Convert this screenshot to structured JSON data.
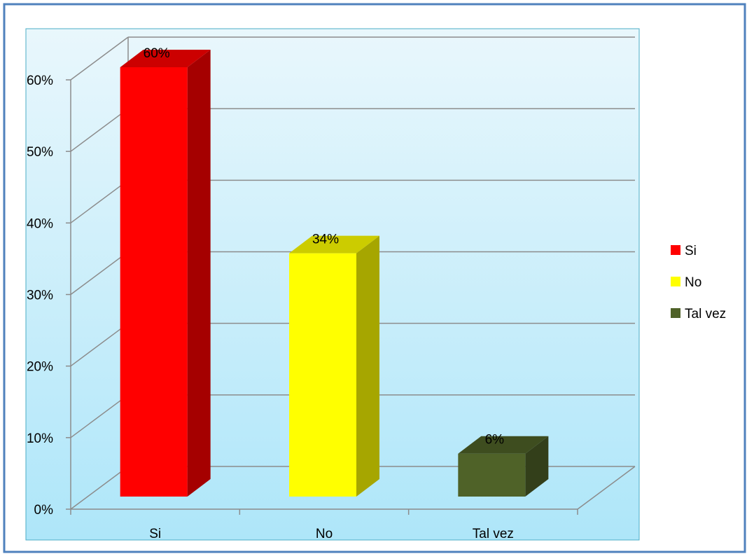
{
  "chart_data": {
    "type": "bar",
    "categories": [
      "Si",
      "No",
      "Tal vez"
    ],
    "values": [
      60,
      34,
      6
    ],
    "value_labels": [
      "60%",
      "34%",
      "6%"
    ],
    "ylim": [
      0,
      60
    ],
    "yticks": [
      0,
      10,
      20,
      30,
      40,
      50,
      60
    ],
    "ytick_labels": [
      "0%",
      "10%",
      "20%",
      "30%",
      "40%",
      "50%",
      "60%"
    ],
    "title": "",
    "xlabel": "",
    "ylabel": "",
    "grid": true,
    "legend_position": "right",
    "legend": [
      {
        "label": "Si",
        "color": "#ff0000"
      },
      {
        "label": "No",
        "color": "#ffff00"
      },
      {
        "label": "Tal vez",
        "color": "#4f6228"
      }
    ],
    "colors": {
      "bar_front": [
        "#ff0000",
        "#ffff00",
        "#4f6228"
      ],
      "bar_side": [
        "#a50000",
        "#a6a600",
        "#333f1a"
      ],
      "bar_top": [
        "#cc0000",
        "#cccc00",
        "#3e4d1f"
      ],
      "plot_bg_top": "#e9f7fc",
      "plot_bg_bottom": "#aee6f9",
      "border": "#4f81bd",
      "plot_border": "#4bacc6"
    },
    "style": "3d-column"
  }
}
